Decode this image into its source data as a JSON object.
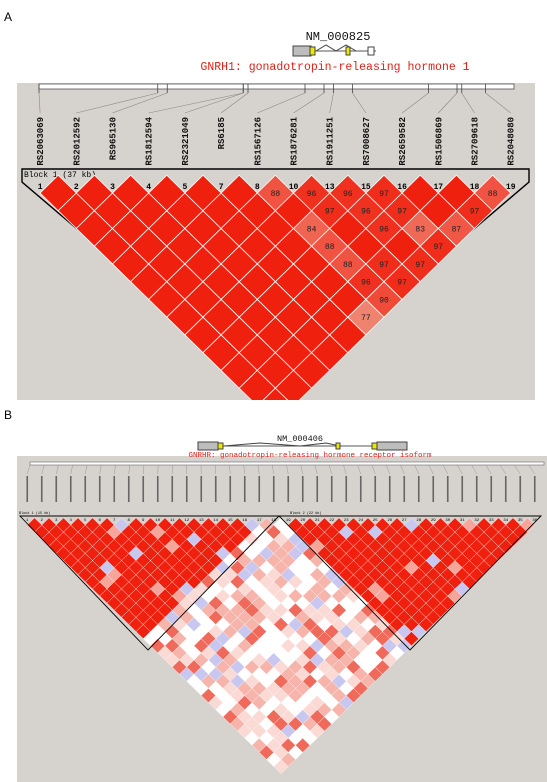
{
  "panel_a": {
    "label": "A",
    "transcript_id": "NM_000825",
    "gene_title": "GNRH1: gonadotropin-releasing hormone 1",
    "block_label": "Block 1 (37 kb)",
    "snps": [
      "RS2063069",
      "RS2012592",
      "RS965130",
      "RS1812594",
      "RS2321049",
      "RS6185",
      "RS1567126",
      "RS1876281",
      "RS1911251",
      "RS7008627",
      "RS2659582",
      "RS1506869",
      "RS2709618",
      "RS2048080"
    ],
    "snp_numbers": [
      "1",
      "2",
      "3",
      "4",
      "5",
      "7",
      "8",
      "10",
      "13",
      "15",
      "16",
      "17",
      "18",
      "19"
    ],
    "ld_cells": [
      {
        "i": 6,
        "j": 7,
        "v": "88"
      },
      {
        "i": 7,
        "j": 8,
        "v": "96"
      },
      {
        "i": 8,
        "j": 9,
        "v": "96"
      },
      {
        "i": 9,
        "j": 10,
        "v": "97"
      },
      {
        "i": 7,
        "j": 9,
        "v": "97"
      },
      {
        "i": 8,
        "j": 10,
        "v": "96"
      },
      {
        "i": 9,
        "j": 11,
        "v": "97"
      },
      {
        "i": 11,
        "j": 13,
        "v": "97"
      },
      {
        "i": 12,
        "j": 13,
        "v": "88"
      },
      {
        "i": 6,
        "j": 9,
        "v": "84"
      },
      {
        "i": 8,
        "j": 11,
        "v": "96"
      },
      {
        "i": 9,
        "j": 12,
        "v": "83"
      },
      {
        "i": 10,
        "j": 13,
        "v": "87"
      },
      {
        "i": 6,
        "j": 10,
        "v": "88"
      },
      {
        "i": 9,
        "j": 13,
        "v": "97"
      },
      {
        "i": 6,
        "j": 11,
        "v": "88"
      },
      {
        "i": 8,
        "j": 13,
        "v": "97"
      },
      {
        "i": 6,
        "j": 12,
        "v": "96"
      },
      {
        "i": 7,
        "j": 13,
        "v": "97"
      },
      {
        "i": 7,
        "j": 12,
        "v": "97"
      },
      {
        "i": 6,
        "j": 13,
        "v": "90"
      },
      {
        "i": 5,
        "j": 13,
        "v": "77"
      }
    ]
  },
  "panel_b": {
    "label": "B",
    "transcript_id": "NM_000406",
    "gene_title": "GNRHR: gonadotropin-releasing hormone receptor isoform",
    "block1_label": "Block 1 (15 kb)",
    "block2_label": "Block 2 (22 kb)",
    "snp_count": 36
  },
  "colors": {
    "strong_ld": "#f0200e",
    "low_ld": "#ffffff",
    "uninformative": "#c7c7ef",
    "panel_bg": "#d6d3ce",
    "title_red": "#e0201a"
  }
}
